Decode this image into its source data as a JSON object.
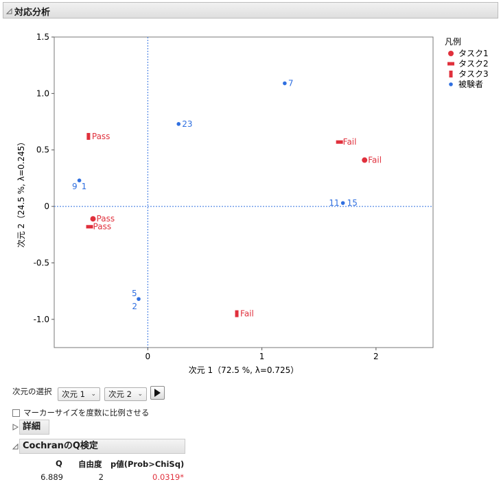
{
  "report": {
    "title": "対応分析",
    "dimension_selector": {
      "label": "次元の選択",
      "x_value": "次元 1",
      "y_value": "次元 2"
    },
    "marker_checkbox_label": "マーカーサイズを度数に比例させる",
    "details_title": "詳細",
    "cochran": {
      "title": "CochranのQ検定",
      "headers": [
        "Q",
        "自由度",
        "p値(Prob>ChiSq)"
      ],
      "q": "6.889",
      "df": "2",
      "p": "0.0319*"
    }
  },
  "colors": {
    "red": "#e0303c",
    "blue": "#2f6fe0",
    "ref_line": "#2f6fe0"
  },
  "chart_data": {
    "type": "scatter",
    "xlabel": "次元 1（72.5 %, λ=0.725）",
    "ylabel": "次元 2（24.5 %, λ=0.245）",
    "xlim": [
      -0.82,
      2.5
    ],
    "ylim": [
      -1.25,
      1.5
    ],
    "xticks": [
      0,
      1,
      2
    ],
    "yticks": [
      -1.0,
      -0.5,
      0,
      0.5,
      1.0,
      1.5
    ],
    "ytick_labels": [
      "-1.0",
      "-0.5",
      "0",
      "0.5",
      "1.0",
      "1.5"
    ],
    "reference_lines": {
      "x": 0,
      "y": 0,
      "style": "dotted"
    },
    "legend_title": "凡例",
    "legend_placement": "right",
    "series": [
      {
        "name": "タスク1",
        "marker": "circle",
        "color": "#e0303c",
        "points": [
          {
            "label": "Pass",
            "x": -0.48,
            "y": -0.11
          },
          {
            "label": "Fail",
            "x": 1.9,
            "y": 0.41
          }
        ]
      },
      {
        "name": "タスク2",
        "marker": "hbar",
        "color": "#e0303c",
        "points": [
          {
            "label": "Pass",
            "x": -0.51,
            "y": -0.18
          },
          {
            "label": "Fail",
            "x": 1.68,
            "y": 0.57
          }
        ]
      },
      {
        "name": "タスク3",
        "marker": "vbar",
        "color": "#e0303c",
        "points": [
          {
            "label": "Pass",
            "x": -0.52,
            "y": 0.62
          },
          {
            "label": "Fail",
            "x": 0.78,
            "y": -0.95
          }
        ]
      },
      {
        "name": "被験者",
        "marker": "dot",
        "color": "#2f6fe0",
        "points": [
          {
            "label": "7",
            "x": 1.2,
            "y": 1.09
          },
          {
            "label": "23",
            "x": 0.27,
            "y": 0.73
          },
          {
            "label": "9 1",
            "x": -0.6,
            "y": 0.23
          },
          {
            "label": "11 15",
            "x": 1.71,
            "y": 0.03
          },
          {
            "label": "2 5",
            "x": -0.08,
            "y": -0.82
          }
        ]
      }
    ]
  }
}
